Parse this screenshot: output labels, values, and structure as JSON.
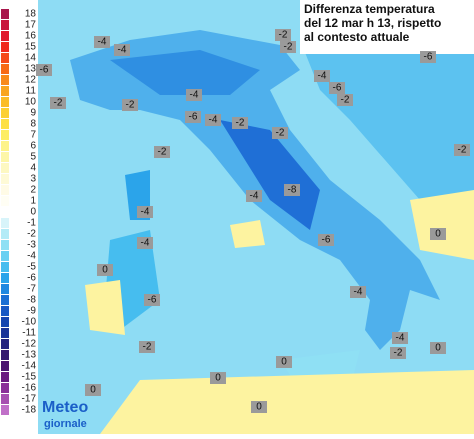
{
  "title": [
    "Differenza temperatura",
    "del 12 mar h 13, rispetto",
    "al contesto attuale"
  ],
  "legend": {
    "ticks": [
      18,
      17,
      16,
      15,
      14,
      13,
      12,
      11,
      10,
      9,
      8,
      7,
      6,
      5,
      4,
      3,
      2,
      1,
      0,
      -1,
      -2,
      -3,
      -4,
      -5,
      -6,
      -7,
      -8,
      -9,
      -10,
      -11,
      -12,
      -13,
      -14,
      -15,
      -16,
      -17,
      -18
    ],
    "colors": [
      "#a8164c",
      "#c8163c",
      "#e0182c",
      "#f02a1e",
      "#f54a1a",
      "#f76a16",
      "#f88a1a",
      "#f9a51e",
      "#fbbd27",
      "#fcd033",
      "#fde046",
      "#fded64",
      "#fdf38a",
      "#fdf6a8",
      "#fdf8c2",
      "#fefad6",
      "#fffbe6",
      "#fffef4",
      "#ffffff",
      "#d8f4fa",
      "#b3ebf7",
      "#8fe0f4",
      "#6ad0f2",
      "#46bdef",
      "#2ba4ea",
      "#1f88e0",
      "#1a6fd4",
      "#1758c4",
      "#1545b0",
      "#1a3398",
      "#24247f",
      "#34196e",
      "#4a1370",
      "#6a1a80",
      "#8a3098",
      "#a650b0",
      "#c070c8"
    ]
  },
  "map_labels": [
    -4,
    -4,
    -2,
    -2,
    -6,
    -6,
    -4,
    -6,
    -2,
    -4,
    -2,
    -2,
    -6,
    -4,
    -2,
    -2,
    -2,
    -2,
    -8,
    -4,
    -4,
    -4,
    -6,
    0,
    0,
    -4,
    -6,
    -4,
    -2,
    -2,
    0,
    0,
    0,
    0,
    0
  ],
  "logo": {
    "brand": "Meteo",
    "sub": "giornale"
  }
}
